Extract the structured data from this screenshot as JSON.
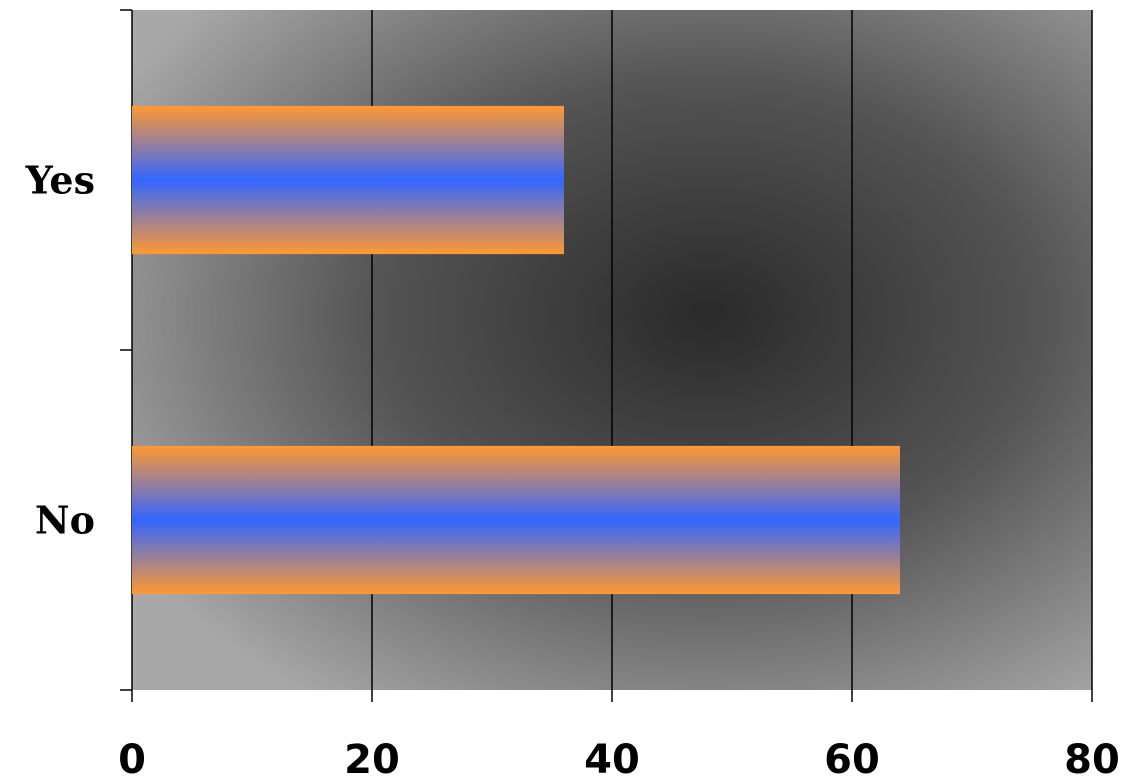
{
  "chart_data": {
    "type": "barh",
    "categories": [
      "Yes",
      "No"
    ],
    "values": [
      36,
      64
    ],
    "colors": [
      "#ff9933",
      "#3366ff",
      "#ff9933"
    ],
    "xlim": [
      0,
      80
    ],
    "xticks": [
      0,
      20,
      40,
      60,
      80
    ],
    "grid": true
  }
}
